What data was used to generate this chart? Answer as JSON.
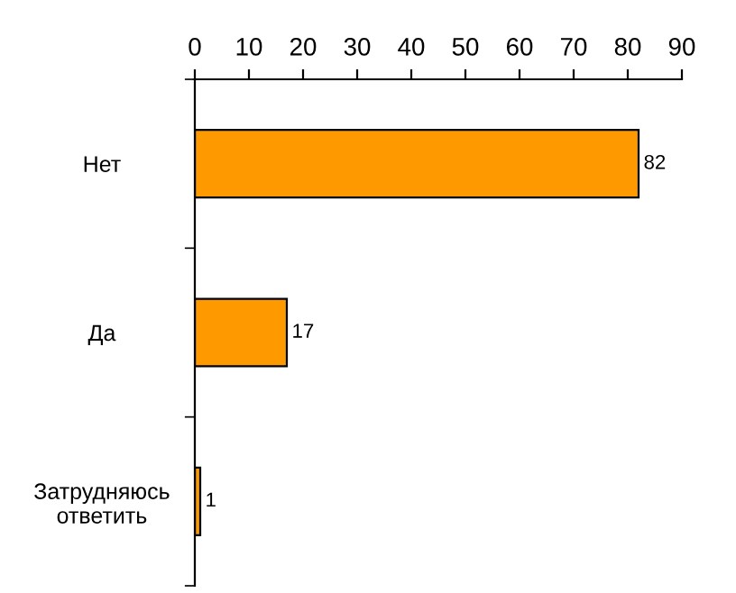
{
  "chart_data": {
    "type": "bar",
    "orientation": "horizontal",
    "categories": [
      "Нет",
      "Да",
      "Затрудняюсь\nответить"
    ],
    "values": [
      82,
      17,
      1
    ],
    "color": "#ff9900",
    "xlim": [
      0,
      90
    ],
    "xticks": [
      0,
      10,
      20,
      30,
      40,
      50,
      60,
      70,
      80,
      90
    ],
    "data_labels": true,
    "grid": false,
    "legend": false
  }
}
